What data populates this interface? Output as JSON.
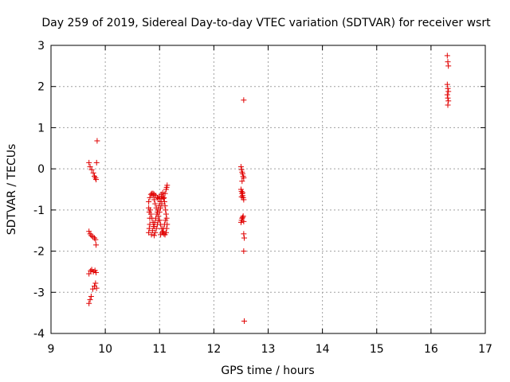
{
  "chart_data": {
    "type": "scatter",
    "title": "Day 259 of 2019, Sidereal Day-to-day VTEC variation (SDTVAR) for receiver wsrt",
    "xlabel": "GPS time / hours",
    "ylabel": "SDTVAR / TECUs",
    "xlim": [
      9,
      17
    ],
    "ylim": [
      -4,
      3
    ],
    "xticks": [
      "9",
      "10",
      "11",
      "12",
      "13",
      "14",
      "15",
      "16",
      "17"
    ],
    "yticks": [
      "-4",
      "-3",
      "-2",
      "-1",
      "0",
      "1",
      "2",
      "3"
    ],
    "grid": true,
    "marker": "+",
    "color": "#e00000",
    "series": [
      {
        "name": "SDTVAR",
        "points": [
          [
            9.7,
            0.15
          ],
          [
            9.72,
            0.05
          ],
          [
            9.75,
            -0.02
          ],
          [
            9.78,
            -0.1
          ],
          [
            9.8,
            -0.18
          ],
          [
            9.82,
            -0.22
          ],
          [
            9.83,
            -0.26
          ],
          [
            9.85,
            0.68
          ],
          [
            9.84,
            0.15
          ],
          [
            9.7,
            -1.52
          ],
          [
            9.72,
            -1.58
          ],
          [
            9.74,
            -1.62
          ],
          [
            9.77,
            -1.65
          ],
          [
            9.8,
            -1.68
          ],
          [
            9.82,
            -1.72
          ],
          [
            9.83,
            -1.85
          ],
          [
            9.7,
            -2.55
          ],
          [
            9.73,
            -2.48
          ],
          [
            9.75,
            -2.45
          ],
          [
            9.78,
            -2.5
          ],
          [
            9.81,
            -2.47
          ],
          [
            9.83,
            -2.52
          ],
          [
            9.7,
            -3.27
          ],
          [
            9.72,
            -3.18
          ],
          [
            9.74,
            -3.1
          ],
          [
            9.77,
            -2.92
          ],
          [
            9.8,
            -2.85
          ],
          [
            9.82,
            -2.78
          ],
          [
            9.84,
            -2.9
          ],
          [
            10.8,
            -1.55
          ],
          [
            10.81,
            -1.45
          ],
          [
            10.82,
            -1.35
          ],
          [
            10.82,
            -1.2
          ],
          [
            10.81,
            -1.05
          ],
          [
            10.8,
            -0.95
          ],
          [
            10.8,
            -0.8
          ],
          [
            10.82,
            -0.7
          ],
          [
            10.84,
            -0.62
          ],
          [
            10.86,
            -0.6
          ],
          [
            10.88,
            -0.65
          ],
          [
            10.9,
            -0.75
          ],
          [
            10.92,
            -0.85
          ],
          [
            10.94,
            -0.95
          ],
          [
            10.96,
            -1.05
          ],
          [
            10.98,
            -1.15
          ],
          [
            11.0,
            -1.25
          ],
          [
            11.02,
            -1.35
          ],
          [
            11.04,
            -1.45
          ],
          [
            11.06,
            -1.52
          ],
          [
            11.08,
            -1.58
          ],
          [
            11.1,
            -1.6
          ],
          [
            11.12,
            -1.55
          ],
          [
            11.13,
            -1.45
          ],
          [
            11.14,
            -1.35
          ],
          [
            11.13,
            -1.2
          ],
          [
            11.12,
            -1.1
          ],
          [
            11.11,
            -1.0
          ],
          [
            11.1,
            -0.9
          ],
          [
            11.09,
            -0.8
          ],
          [
            11.08,
            -0.7
          ],
          [
            11.1,
            -0.6
          ],
          [
            11.12,
            -0.5
          ],
          [
            11.13,
            -0.45
          ],
          [
            11.14,
            -0.4
          ],
          [
            10.85,
            -1.6
          ],
          [
            10.87,
            -1.5
          ],
          [
            10.89,
            -1.4
          ],
          [
            10.91,
            -1.3
          ],
          [
            10.93,
            -1.2
          ],
          [
            10.95,
            -1.1
          ],
          [
            10.97,
            -1.0
          ],
          [
            10.99,
            -0.9
          ],
          [
            11.01,
            -0.8
          ],
          [
            11.03,
            -0.72
          ],
          [
            11.05,
            -0.68
          ],
          [
            11.07,
            -0.72
          ],
          [
            11.04,
            -0.85
          ],
          [
            11.02,
            -0.95
          ],
          [
            11.0,
            -1.05
          ],
          [
            10.98,
            -1.25
          ],
          [
            10.96,
            -1.35
          ],
          [
            10.94,
            -1.45
          ],
          [
            10.92,
            -1.55
          ],
          [
            10.9,
            -1.62
          ],
          [
            10.83,
            -1.0
          ],
          [
            10.84,
            -1.1
          ],
          [
            10.86,
            -1.2
          ],
          [
            10.88,
            -1.3
          ],
          [
            10.9,
            -1.4
          ],
          [
            11.02,
            -1.6
          ],
          [
            11.05,
            -1.55
          ],
          [
            11.07,
            -1.45
          ],
          [
            11.09,
            -1.35
          ],
          [
            11.11,
            -1.25
          ],
          [
            10.88,
            -0.6
          ],
          [
            10.9,
            -0.62
          ],
          [
            10.93,
            -0.65
          ],
          [
            10.96,
            -0.7
          ],
          [
            10.98,
            -0.72
          ],
          [
            11.0,
            -0.68
          ],
          [
            11.03,
            -0.62
          ],
          [
            11.06,
            -0.58
          ],
          [
            12.5,
            0.05
          ],
          [
            12.51,
            -0.02
          ],
          [
            12.52,
            -0.08
          ],
          [
            12.53,
            -0.12
          ],
          [
            12.54,
            -0.18
          ],
          [
            12.55,
            -0.22
          ],
          [
            12.52,
            -0.3
          ],
          [
            12.5,
            -0.5
          ],
          [
            12.51,
            -0.55
          ],
          [
            12.52,
            -0.6
          ],
          [
            12.53,
            -0.65
          ],
          [
            12.54,
            -0.7
          ],
          [
            12.55,
            -0.75
          ],
          [
            12.53,
            -0.58
          ],
          [
            12.51,
            -0.68
          ],
          [
            12.5,
            -1.3
          ],
          [
            12.51,
            -1.25
          ],
          [
            12.52,
            -1.2
          ],
          [
            12.53,
            -1.18
          ],
          [
            12.54,
            -1.15
          ],
          [
            12.55,
            -1.28
          ],
          [
            12.55,
            1.67
          ],
          [
            12.55,
            -1.58
          ],
          [
            12.56,
            -1.68
          ],
          [
            12.55,
            -2.0
          ],
          [
            12.56,
            -3.7
          ],
          [
            16.3,
            2.75
          ],
          [
            16.31,
            2.6
          ],
          [
            16.32,
            2.5
          ],
          [
            16.3,
            2.05
          ],
          [
            16.31,
            1.95
          ],
          [
            16.32,
            1.88
          ],
          [
            16.3,
            1.8
          ],
          [
            16.31,
            1.72
          ],
          [
            16.32,
            1.65
          ],
          [
            16.31,
            1.55
          ]
        ]
      }
    ]
  }
}
